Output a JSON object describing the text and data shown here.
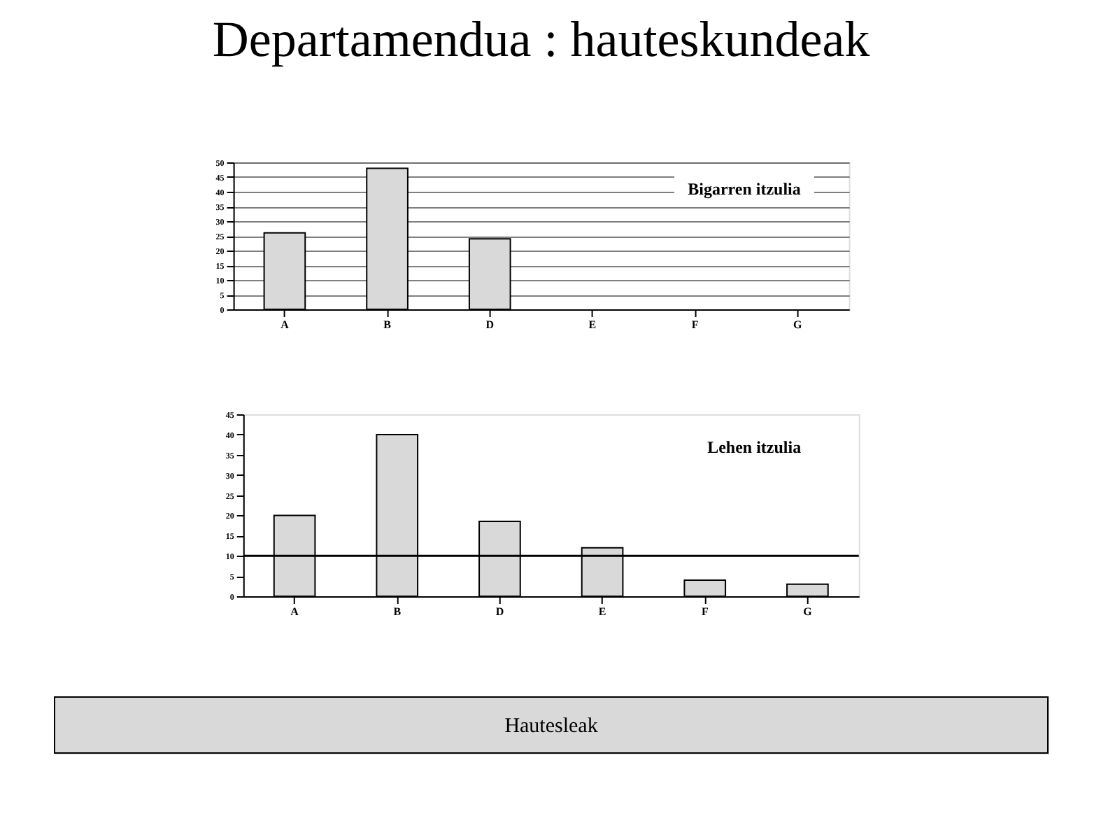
{
  "chart_data": [
    {
      "type": "bar",
      "title": "Departamendua : hauteskundeak",
      "categories": [
        "A",
        "B",
        "D",
        "E",
        "F",
        "G"
      ],
      "values": [
        26,
        48,
        24,
        null,
        null,
        null
      ],
      "color": "#d9d9d9",
      "ylim": [
        0,
        50
      ],
      "yticks": [
        0,
        5,
        10,
        15,
        20,
        25,
        30,
        35,
        40,
        45,
        50
      ],
      "grid": "y",
      "annotations": [
        "Bigarren itzulia"
      ]
    },
    {
      "type": "bar",
      "categories": [
        "A",
        "B",
        "D",
        "E",
        "F",
        "G"
      ],
      "values": [
        20,
        40,
        18.5,
        12,
        4,
        3
      ],
      "color": "#d9d9d9",
      "ylim": [
        0,
        45
      ],
      "yticks": [
        0,
        5,
        10,
        15,
        20,
        25,
        30,
        35,
        40,
        45
      ],
      "grid": false,
      "ref_lines": [
        {
          "axis": "y",
          "value": 10,
          "color": "#000000"
        }
      ],
      "annotations": [
        "Lehen itzulia",
        "Hautesleak"
      ]
    }
  ]
}
